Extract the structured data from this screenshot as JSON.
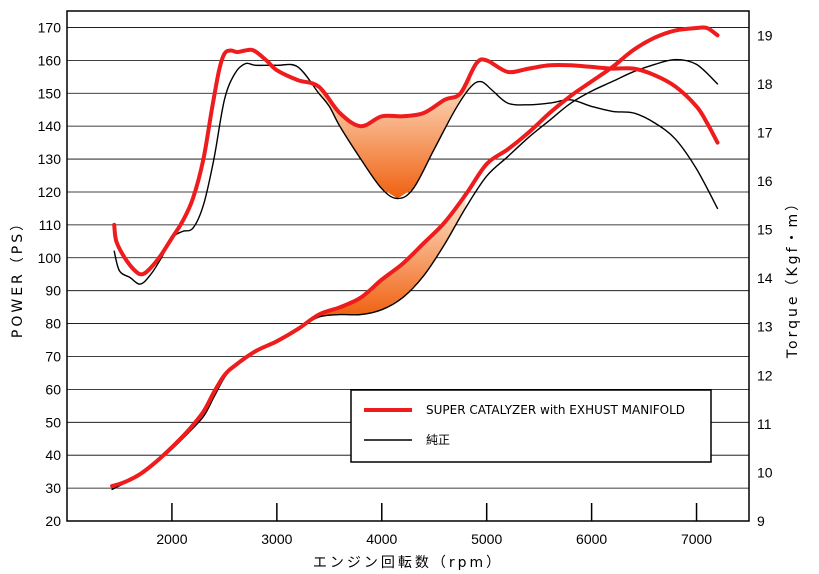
{
  "chart_data": {
    "type": "line",
    "xlabel": "エンジン回転数（rpm）",
    "ylabel_left": "POWER（PS）",
    "ylabel_right": "Torque（Kgf・m）",
    "xlim": [
      1000,
      7500
    ],
    "ylim_left": [
      20,
      175
    ],
    "ylim_right": [
      9,
      19.5
    ],
    "x_ticks": [
      2000,
      3000,
      4000,
      5000,
      6000,
      7000
    ],
    "y_left_ticks": [
      20,
      30,
      40,
      50,
      60,
      70,
      80,
      90,
      100,
      110,
      120,
      130,
      140,
      150,
      160,
      170
    ],
    "y_right_ticks": [
      9,
      10,
      11,
      12,
      13,
      14,
      15,
      16,
      17,
      18,
      19
    ],
    "grid": true,
    "legend_position": "lower-right",
    "colors": {
      "super": "#ee1c1c",
      "stock": "#000000",
      "gain_dark": "#f06010",
      "gain_light": "#fde6cf"
    },
    "series": [
      {
        "name": "SUPER CATALYZER with EXHUST MANIFOLD",
        "kind": "power",
        "axis": "left",
        "color": "#ee1c1c",
        "x": [
          1450,
          1470,
          1550,
          1650,
          1720,
          1800,
          1900,
          2000,
          2100,
          2200,
          2300,
          2380,
          2450,
          2500,
          2560,
          2620,
          2700,
          2780,
          2900,
          3000,
          3200,
          3400,
          3600,
          3800,
          4000,
          4200,
          4400,
          4600,
          4750,
          4900,
          5000,
          5200,
          5400,
          5600,
          5800,
          6000,
          6200,
          6400,
          6600,
          6800,
          7000,
          7100,
          7200
        ],
        "y": [
          110,
          105,
          100,
          96,
          95,
          97,
          101,
          106,
          111,
          118,
          130,
          145,
          157,
          162,
          163,
          162.5,
          163,
          163,
          160,
          157,
          154,
          152,
          144,
          140,
          143,
          143,
          144,
          148,
          150,
          159,
          160,
          156.5,
          157.5,
          158.5,
          158.5,
          158,
          157.5,
          157.5,
          155.5,
          152,
          146,
          141,
          135
        ]
      },
      {
        "name": "純正",
        "kind": "power",
        "axis": "left",
        "color": "#000000",
        "x": [
          1450,
          1500,
          1600,
          1700,
          1800,
          1900,
          2000,
          2100,
          2200,
          2300,
          2400,
          2500,
          2600,
          2700,
          2800,
          3000,
          3200,
          3400,
          3500,
          3600,
          3800,
          4000,
          4150,
          4300,
          4500,
          4700,
          4850,
          4950,
          5050,
          5200,
          5400,
          5600,
          5800,
          6000,
          6200,
          6400,
          6600,
          6800,
          7000,
          7200
        ],
        "y": [
          102,
          96,
          94,
          92,
          95,
          100,
          106,
          108,
          109,
          116,
          130,
          148,
          156,
          159,
          158.5,
          158.5,
          158,
          150,
          146,
          140,
          130,
          121,
          118,
          121,
          133,
          145,
          152,
          153.5,
          151,
          147,
          146.5,
          147,
          148,
          146,
          144.5,
          144,
          141,
          136,
          127,
          115
        ]
      },
      {
        "name": "SUPER CATALYZER with EXHUST MANIFOLD",
        "kind": "torque",
        "axis": "right",
        "color": "#ee1c1c",
        "x": [
          1430,
          1550,
          1700,
          1850,
          2000,
          2150,
          2300,
          2400,
          2500,
          2600,
          2800,
          3000,
          3200,
          3400,
          3600,
          3800,
          4000,
          4200,
          4400,
          4600,
          4800,
          5000,
          5200,
          5400,
          5600,
          5800,
          6000,
          6200,
          6400,
          6600,
          6800,
          7000,
          7100,
          7200
        ],
        "y": [
          9.72,
          9.8,
          9.97,
          10.22,
          10.52,
          10.85,
          11.25,
          11.65,
          12.0,
          12.2,
          12.5,
          12.7,
          12.95,
          13.25,
          13.4,
          13.6,
          13.97,
          14.3,
          14.72,
          15.15,
          15.72,
          16.35,
          16.65,
          17.0,
          17.4,
          17.75,
          18.05,
          18.35,
          18.7,
          18.95,
          19.1,
          19.15,
          19.15,
          19.0
        ]
      },
      {
        "name": "純正",
        "kind": "torque",
        "axis": "right",
        "color": "#000000",
        "x": [
          1430,
          1550,
          1700,
          1850,
          2000,
          2150,
          2300,
          2400,
          2500,
          2600,
          2800,
          3000,
          3200,
          3400,
          3600,
          3800,
          4000,
          4200,
          4400,
          4600,
          4800,
          5000,
          5200,
          5400,
          5600,
          5800,
          6000,
          6200,
          6400,
          6600,
          6800,
          7000,
          7200
        ],
        "y": [
          9.65,
          9.78,
          9.95,
          10.2,
          10.48,
          10.8,
          11.15,
          11.55,
          11.95,
          12.2,
          12.48,
          12.7,
          12.95,
          13.2,
          13.25,
          13.25,
          13.35,
          13.6,
          14.05,
          14.7,
          15.45,
          16.1,
          16.5,
          16.9,
          17.25,
          17.6,
          17.85,
          18.05,
          18.25,
          18.4,
          18.5,
          18.4,
          18.0
        ]
      }
    ],
    "gain_regions": [
      {
        "axis": "left",
        "from_x": 3400,
        "to_x": 4850
      },
      {
        "axis": "right",
        "from_x": 3400,
        "to_x": 4800
      }
    ],
    "legend": [
      {
        "label": "SUPER CATALYZER with EXHUST MANIFOLD",
        "color": "#ee1c1c",
        "thick": true
      },
      {
        "label": "純正",
        "color": "#000000",
        "thick": false
      }
    ]
  }
}
